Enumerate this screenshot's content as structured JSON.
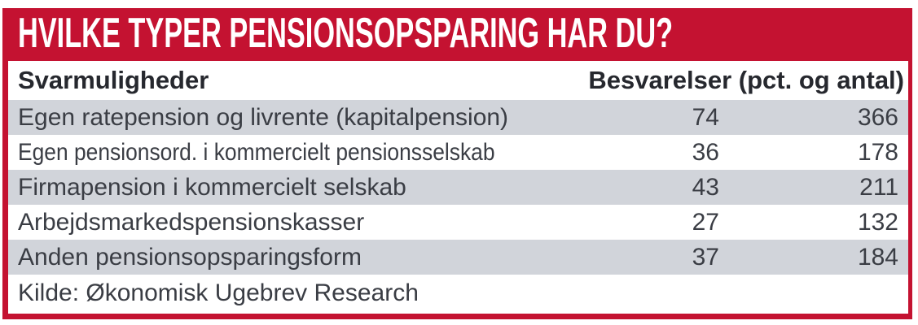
{
  "header": {
    "title": "HVILKE TYPER PENSIONSOPSPARING HAR DU?"
  },
  "table": {
    "columns": {
      "answers": "Svarmuligheder",
      "responses": "Besvarelser (pct. og antal)"
    },
    "rows": [
      {
        "label": "Egen ratepension og livrente (kapitalpension)",
        "pct": "74",
        "antal": "366"
      },
      {
        "label": "Egen pensionsord. i kommercielt pensionsselskab",
        "pct": "36",
        "antal": "178"
      },
      {
        "label": "Firmapension i kommercielt selskab",
        "pct": "43",
        "antal": "211"
      },
      {
        "label": "Arbejdsmarkedspensionskasser",
        "pct": "27",
        "antal": "132"
      },
      {
        "label": "Anden pensionsopsparingsform",
        "pct": "37",
        "antal": "184"
      }
    ],
    "source": "Kilde: Økonomisk Ugebrev Research"
  },
  "colors": {
    "accent_red": "#C41231",
    "row_alt_gray": "#D1D4DA",
    "body_text": "#3A3D44"
  },
  "chart_data": {
    "type": "table",
    "title": "HVILKE TYPER PENSIONSOPSPARING HAR DU?",
    "columns": [
      "Svarmuligheder",
      "Besvarelser (pct. og antal)"
    ],
    "categories": [
      "Egen ratepension og livrente (kapitalpension)",
      "Egen pensionsord. i kommercielt pensionsselskab",
      "Firmapension i kommercielt selskab",
      "Arbejdsmarkedspensionskasser",
      "Anden pensionsopsparingsform"
    ],
    "series": [
      {
        "name": "pct",
        "values": [
          74,
          36,
          43,
          27,
          37
        ]
      },
      {
        "name": "antal",
        "values": [
          366,
          178,
          211,
          132,
          184
        ]
      }
    ],
    "source": "Kilde: Økonomisk Ugebrev Research"
  }
}
